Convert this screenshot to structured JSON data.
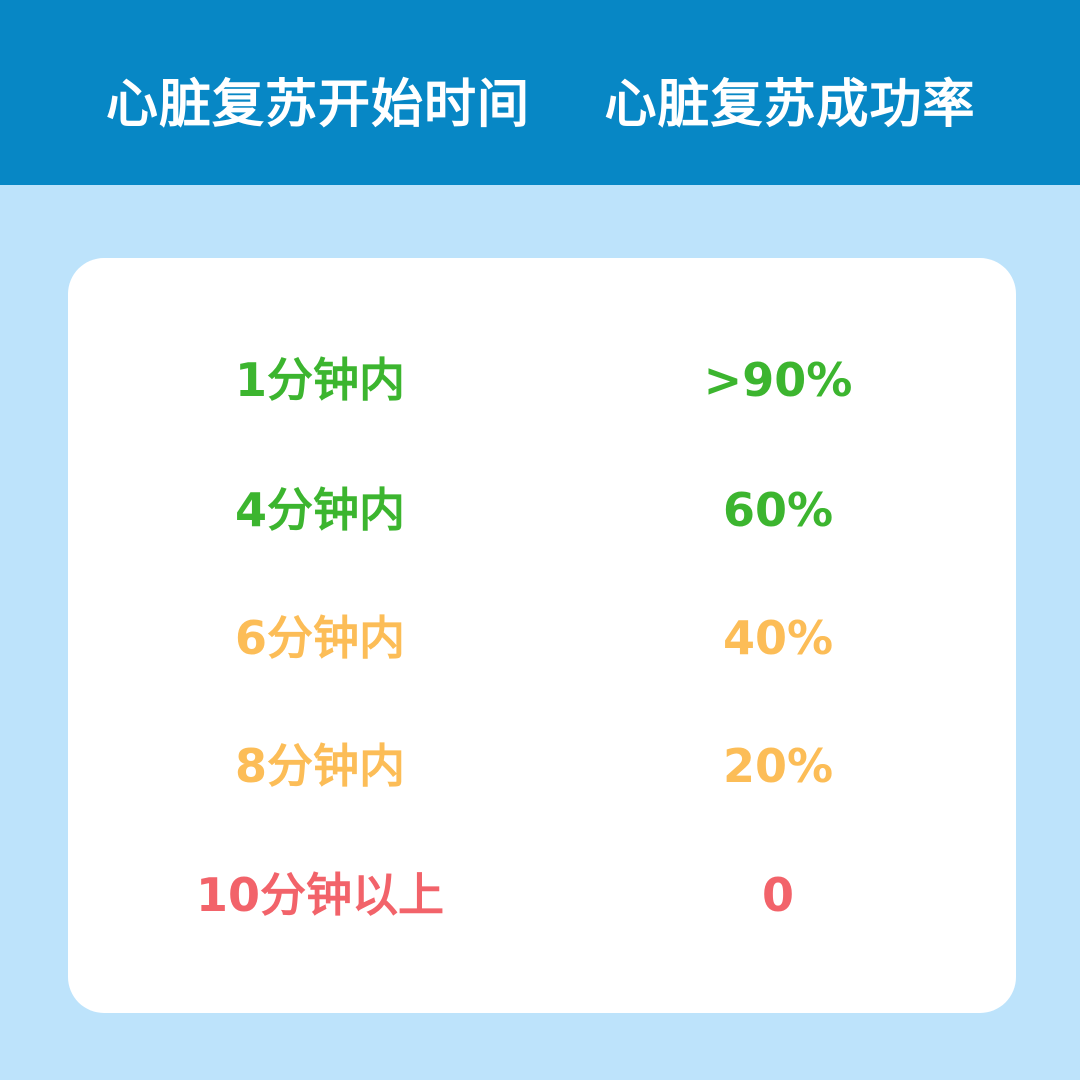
{
  "header": {
    "columns": [
      "心脏复苏开始时间",
      "心脏复苏成功率"
    ]
  },
  "table": {
    "rows": [
      [
        "1分钟内",
        ">90%"
      ],
      [
        "4分钟内",
        "60%"
      ],
      [
        "6分钟内",
        "40%"
      ],
      [
        "8分钟内",
        "20%"
      ],
      [
        "10分钟以上",
        "0"
      ]
    ]
  }
}
